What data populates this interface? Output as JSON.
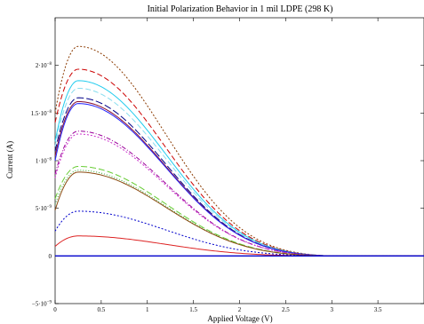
{
  "chart_data": {
    "type": "line",
    "title": "Initial Polarization Behavior in 1 mil LDPE (298 K)",
    "xlabel": "Applied Voltage (V)",
    "ylabel": "Current (A)",
    "xlim": [
      0,
      4
    ],
    "ylim": [
      -5e-09,
      2.5e-08
    ],
    "grid": false,
    "x_ticks": [
      {
        "value": 0,
        "label": "0"
      },
      {
        "value": 0.5,
        "label": "0.5"
      },
      {
        "value": 1,
        "label": "1"
      },
      {
        "value": 1.5,
        "label": "1.5"
      },
      {
        "value": 2,
        "label": "2"
      },
      {
        "value": 2.5,
        "label": "2.5"
      },
      {
        "value": 3,
        "label": "3"
      },
      {
        "value": 3.5,
        "label": "3.5"
      }
    ],
    "y_ticks": [
      {
        "value": -5e-09,
        "mantissa": "−5·10",
        "exponent": "−9"
      },
      {
        "value": 0,
        "mantissa": "0",
        "exponent": ""
      },
      {
        "value": 5e-09,
        "mantissa": "5·10",
        "exponent": "−9"
      },
      {
        "value": 1e-08,
        "mantissa": "1·10",
        "exponent": "−8"
      },
      {
        "value": 1.5e-08,
        "mantissa": "1.5·10",
        "exponent": "−8"
      },
      {
        "value": 2e-08,
        "mantissa": "2·10",
        "exponent": "−8"
      }
    ],
    "series": [
      {
        "color": "#8b3a00",
        "dash": "2,2",
        "peak": 2.2e-08,
        "start": 1.5e-08
      },
      {
        "color": "#cc0000",
        "dash": "6,3",
        "peak": 1.96e-08,
        "start": 1.4e-08
      },
      {
        "color": "#22ccee",
        "dash": "",
        "peak": 1.84e-08,
        "start": 1.2e-08
      },
      {
        "color": "#88ddee",
        "dash": "6,3",
        "peak": 1.76e-08,
        "start": 1.15e-08
      },
      {
        "color": "#000088",
        "dash": "8,3",
        "peak": 1.66e-08,
        "start": 1.1e-08
      },
      {
        "color": "#8a1030",
        "dash": "",
        "peak": 1.62e-08,
        "start": 1.05e-08
      },
      {
        "color": "#2222ff",
        "dash": "",
        "peak": 1.6e-08,
        "start": 1e-08
      },
      {
        "color": "#990099",
        "dash": "5,2,1,2",
        "peak": 1.31e-08,
        "start": 8.6e-09
      },
      {
        "color": "#cc33cc",
        "dash": "2,2",
        "peak": 1.28e-08,
        "start": 8.2e-09
      },
      {
        "color": "#66cc33",
        "dash": "7,3",
        "peak": 9.4e-09,
        "start": 6e-09
      },
      {
        "color": "#33aa33",
        "dash": "1,2",
        "peak": 9e-09,
        "start": 5.4e-09
      },
      {
        "color": "#8b4a10",
        "dash": "",
        "peak": 8.8e-09,
        "start": 4.8e-09
      },
      {
        "color": "#0000cc",
        "dash": "2,2",
        "peak": 4.7e-09,
        "start": 2.6e-09
      },
      {
        "color": "#dd2222",
        "dash": "",
        "peak": 2.1e-09,
        "start": 1e-09
      }
    ],
    "peak_x": 0.25,
    "decay_end_x": 3.0,
    "baseline_color": "#0000cc"
  }
}
